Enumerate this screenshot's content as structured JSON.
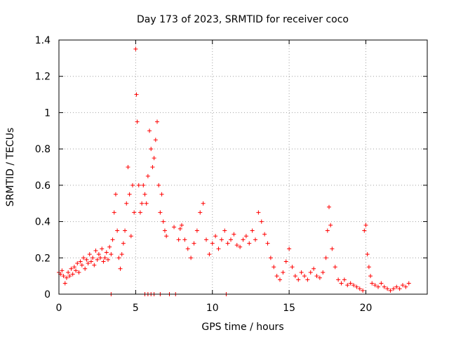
{
  "chart_data": {
    "type": "scatter",
    "title": "Day 173 of 2023, SRMTID for receiver coco",
    "xlabel": "GPS time / hours",
    "ylabel": "SRMTID / TECUs",
    "xlim": [
      0,
      24
    ],
    "ylim": [
      0,
      1.4
    ],
    "xticks": [
      0,
      5,
      10,
      15,
      20
    ],
    "xtick_labels": [
      "0",
      "5",
      "10",
      "15",
      "20"
    ],
    "yticks": [
      0,
      0.2,
      0.4,
      0.6,
      0.8,
      1.0,
      1.2,
      1.4
    ],
    "ytick_labels": [
      "0",
      "0.2",
      "0.4",
      "0.6",
      "0.8",
      "1",
      "1.2",
      "1.4"
    ],
    "grid": true,
    "marker": "+",
    "series_color": "#ff0000",
    "series": [
      {
        "name": "SRMTID",
        "x": [
          0.0,
          0.1,
          0.2,
          0.3,
          0.4,
          0.5,
          0.6,
          0.7,
          0.8,
          0.9,
          1.0,
          1.1,
          1.2,
          1.3,
          1.4,
          1.5,
          1.6,
          1.7,
          1.8,
          1.9,
          2.0,
          2.1,
          2.2,
          2.3,
          2.4,
          2.5,
          2.6,
          2.7,
          2.8,
          2.9,
          3.0,
          3.1,
          3.2,
          3.3,
          3.4,
          3.5,
          3.6,
          3.7,
          3.8,
          3.9,
          4.0,
          4.1,
          4.2,
          4.3,
          4.4,
          4.5,
          4.6,
          4.7,
          4.8,
          4.9,
          5.0,
          5.05,
          5.1,
          5.2,
          5.3,
          5.4,
          5.5,
          5.6,
          5.7,
          5.8,
          5.9,
          6.0,
          6.1,
          6.2,
          6.3,
          6.4,
          6.5,
          6.6,
          6.7,
          6.8,
          6.9,
          7.0,
          7.5,
          7.8,
          7.9,
          8.0,
          8.2,
          8.4,
          8.6,
          8.8,
          9.0,
          9.2,
          9.4,
          9.6,
          9.8,
          10.0,
          10.2,
          10.4,
          10.6,
          10.8,
          11.0,
          11.2,
          11.4,
          11.6,
          11.8,
          12.0,
          12.2,
          12.4,
          12.6,
          12.8,
          13.0,
          13.2,
          13.4,
          13.6,
          13.8,
          14.0,
          14.2,
          14.4,
          14.6,
          14.8,
          15.0,
          15.2,
          15.4,
          15.6,
          15.8,
          16.0,
          16.2,
          16.4,
          16.6,
          16.8,
          17.0,
          17.2,
          17.4,
          17.5,
          17.6,
          17.7,
          17.8,
          18.0,
          18.2,
          18.4,
          18.6,
          18.8,
          19.0,
          19.2,
          19.4,
          19.6,
          19.8,
          19.9,
          20.0,
          20.1,
          20.2,
          20.3,
          20.4,
          20.6,
          20.8,
          21.0,
          21.2,
          21.4,
          21.6,
          21.8,
          22.0,
          22.2,
          22.4,
          22.6,
          22.8,
          3.4,
          5.6,
          5.8,
          6.0,
          6.2,
          6.6,
          7.2,
          7.6,
          10.9
        ],
        "y": [
          0.12,
          0.11,
          0.13,
          0.1,
          0.06,
          0.09,
          0.12,
          0.1,
          0.14,
          0.11,
          0.15,
          0.13,
          0.17,
          0.12,
          0.18,
          0.16,
          0.2,
          0.14,
          0.19,
          0.17,
          0.22,
          0.18,
          0.2,
          0.16,
          0.24,
          0.19,
          0.22,
          0.2,
          0.25,
          0.18,
          0.2,
          0.23,
          0.19,
          0.26,
          0.22,
          0.3,
          0.45,
          0.55,
          0.35,
          0.2,
          0.14,
          0.22,
          0.28,
          0.35,
          0.5,
          0.7,
          0.55,
          0.32,
          0.6,
          0.45,
          1.35,
          1.1,
          0.95,
          0.6,
          0.45,
          0.5,
          0.6,
          0.55,
          0.5,
          0.65,
          0.9,
          0.8,
          0.7,
          0.75,
          0.85,
          0.95,
          0.6,
          0.45,
          0.55,
          0.4,
          0.35,
          0.32,
          0.37,
          0.3,
          0.36,
          0.38,
          0.3,
          0.25,
          0.2,
          0.28,
          0.35,
          0.45,
          0.5,
          0.3,
          0.22,
          0.28,
          0.32,
          0.25,
          0.3,
          0.35,
          0.28,
          0.3,
          0.33,
          0.27,
          0.26,
          0.3,
          0.32,
          0.28,
          0.35,
          0.3,
          0.45,
          0.4,
          0.33,
          0.28,
          0.2,
          0.15,
          0.1,
          0.08,
          0.12,
          0.18,
          0.25,
          0.15,
          0.1,
          0.08,
          0.12,
          0.1,
          0.08,
          0.12,
          0.14,
          0.1,
          0.09,
          0.12,
          0.2,
          0.35,
          0.48,
          0.38,
          0.25,
          0.15,
          0.08,
          0.06,
          0.08,
          0.05,
          0.06,
          0.05,
          0.04,
          0.03,
          0.02,
          0.35,
          0.38,
          0.22,
          0.15,
          0.1,
          0.06,
          0.05,
          0.04,
          0.06,
          0.04,
          0.03,
          0.02,
          0.03,
          0.04,
          0.03,
          0.05,
          0.04,
          0.06,
          0.0,
          0.0,
          0.0,
          0.0,
          0.0,
          0.0,
          0.0,
          0.0,
          0.0
        ]
      }
    ]
  }
}
